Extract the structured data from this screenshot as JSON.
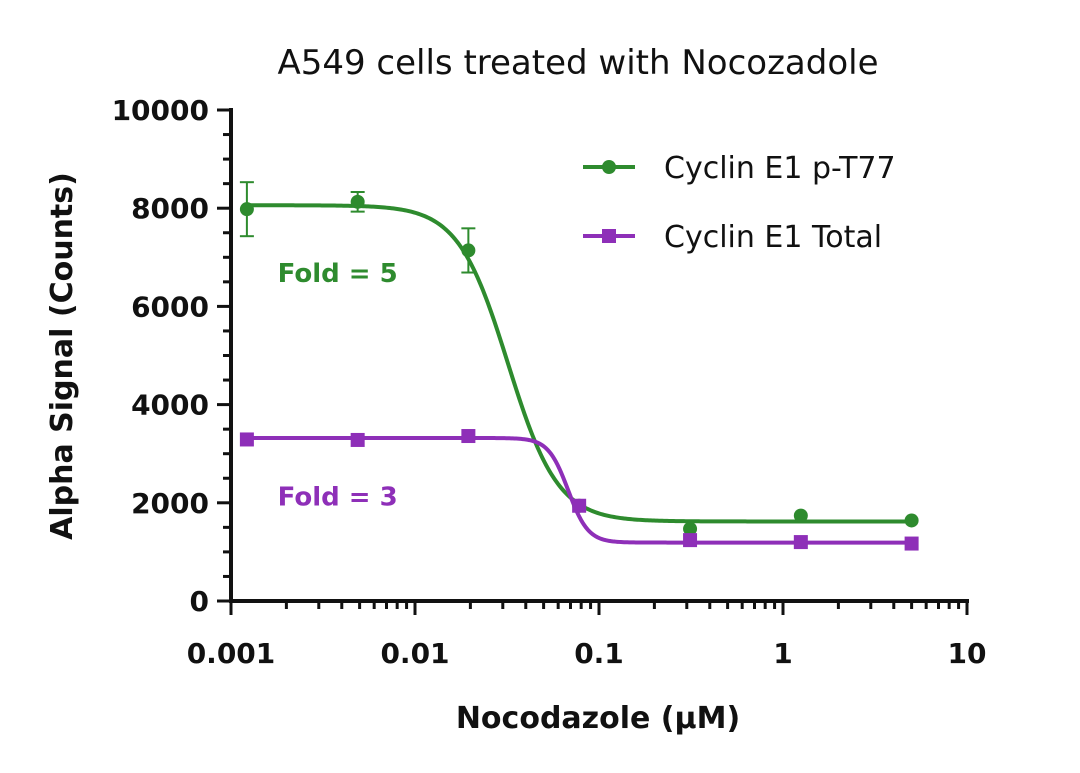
{
  "chart_data": {
    "type": "line",
    "title": "A549 cells treated with Nocozadole",
    "xlabel": "Nocodazole (µM)",
    "ylabel": "Alpha Signal (Counts)",
    "xscale": "log",
    "xlim": [
      0.001,
      10
    ],
    "ylim": [
      0,
      10000
    ],
    "x_ticks": [
      0.001,
      0.01,
      0.1,
      1,
      10
    ],
    "x_tick_labels": [
      "0.001",
      "0.01",
      "0.1",
      "1",
      "10"
    ],
    "y_ticks": [
      0,
      2000,
      4000,
      6000,
      8000,
      10000
    ],
    "y_tick_labels": [
      "0",
      "2000",
      "4000",
      "6000",
      "8000",
      "10000"
    ],
    "legend_position": "top-right",
    "series": [
      {
        "name": "Cyclin E1 p-T77",
        "color": "#2e8b2e",
        "marker": "circle",
        "x": [
          0.00122,
          0.00488,
          0.0195,
          0.078,
          0.3125,
          1.25,
          5
        ],
        "y": [
          7980,
          8130,
          7140,
          1940,
          1470,
          1740,
          1640
        ],
        "error": [
          550,
          200,
          450,
          0,
          0,
          0,
          0
        ],
        "fit": {
          "top": 8060,
          "bottom": 1620,
          "ec50": 0.032,
          "hill": 3.2
        }
      },
      {
        "name": "Cyclin E1 Total",
        "color": "#8e2fb8",
        "marker": "square",
        "x": [
          0.00122,
          0.00488,
          0.0195,
          0.078,
          0.3125,
          1.25,
          5
        ],
        "y": [
          3290,
          3280,
          3360,
          1940,
          1240,
          1200,
          1170
        ],
        "error": [
          0,
          0,
          0,
          0,
          0,
          0,
          0
        ],
        "fit": {
          "top": 3320,
          "bottom": 1190,
          "ec50": 0.068,
          "hill": 8.0
        }
      }
    ],
    "annotations": [
      {
        "text": "Fold = 5",
        "color": "#2e8b2e",
        "x": 0.0038,
        "y": 6500
      },
      {
        "text": "Fold = 3",
        "color": "#8e2fb8",
        "x": 0.0038,
        "y": 1950
      }
    ]
  }
}
